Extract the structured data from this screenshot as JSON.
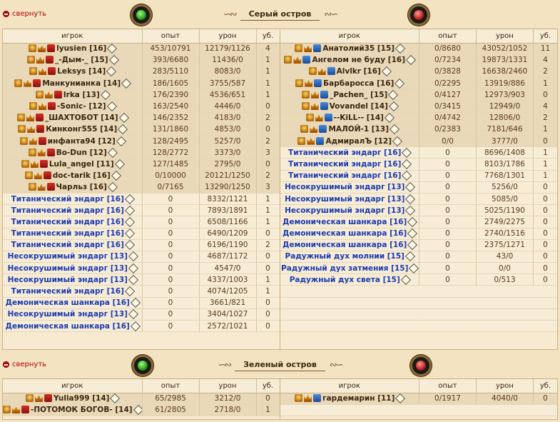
{
  "sections": [
    {
      "collapse_label": "свернуть",
      "title": "Серый остров",
      "columns": [
        "игрок",
        "опыт",
        "урон",
        "уб."
      ],
      "left": [
        {
          "name": "lyusien [16]",
          "exp": "453/10791",
          "dmg": "12179/1126",
          "kills": "4"
        },
        {
          "name": "_-Дым-_ [15]",
          "exp": "393/6680",
          "dmg": "11436/0",
          "kills": "1"
        },
        {
          "name": "Leksys [14]",
          "exp": "283/5110",
          "dmg": "8083/0",
          "kills": "1"
        },
        {
          "name": "Манкунианка [14]",
          "exp": "186/1605",
          "dmg": "3755/587",
          "kills": "1"
        },
        {
          "name": "Irka [13]",
          "exp": "176/2390",
          "dmg": "4536/651",
          "kills": "1"
        },
        {
          "name": "-Sonic- [12]",
          "exp": "163/2540",
          "dmg": "4446/0",
          "kills": "0"
        },
        {
          "name": "_ШАХТОБОТ [14]",
          "exp": "146/2352",
          "dmg": "4183/0",
          "kills": "2"
        },
        {
          "name": "Кинконг555 [14]",
          "exp": "131/1860",
          "dmg": "4853/0",
          "kills": "0"
        },
        {
          "name": "инфанта94 [12]",
          "exp": "128/2495",
          "dmg": "5257/0",
          "kills": "2"
        },
        {
          "name": "Bo-Dun [12]",
          "exp": "128/2772",
          "dmg": "3373/0",
          "kills": "3"
        },
        {
          "name": "Lula_angel [11]",
          "exp": "127/1485",
          "dmg": "2795/0",
          "kills": "0"
        },
        {
          "name": "doc-tarik [16]",
          "exp": "0/10000",
          "dmg": "20121/1250",
          "kills": "2"
        },
        {
          "name": "Чарльз [16]",
          "exp": "0/7165",
          "dmg": "13290/1250",
          "kills": "3"
        },
        {
          "name": "Титанический эндарг [16]",
          "exp": "0",
          "dmg": "8332/1121",
          "kills": "1"
        },
        {
          "name": "Титанический эндарг [16]",
          "exp": "0",
          "dmg": "7893/1891",
          "kills": "1"
        },
        {
          "name": "Титанический эндарг [16]",
          "exp": "0",
          "dmg": "6508/1166",
          "kills": "1"
        },
        {
          "name": "Титанический эндарг [16]",
          "exp": "0",
          "dmg": "6490/1209",
          "kills": "0"
        },
        {
          "name": "Титанический эндарг [16]",
          "exp": "0",
          "dmg": "6196/1190",
          "kills": "2"
        },
        {
          "name": "Несокрушимый эндарг [13]",
          "exp": "0",
          "dmg": "4687/1172",
          "kills": "0"
        },
        {
          "name": "Несокрушимый эндарг [13]",
          "exp": "0",
          "dmg": "4547/0",
          "kills": "0"
        },
        {
          "name": "Несокрушимый эндарг [13]",
          "exp": "0",
          "dmg": "4337/1003",
          "kills": "1"
        },
        {
          "name": "Титанический эндарг [16]",
          "exp": "0",
          "dmg": "4074/1205",
          "kills": "1"
        },
        {
          "name": "Демоническая шанкара [16]",
          "exp": "0",
          "dmg": "3661/821",
          "kills": "0"
        },
        {
          "name": "Несокрушимый эндарг [13]",
          "exp": "0",
          "dmg": "3404/1027",
          "kills": "0"
        },
        {
          "name": "Демоническая шанкара [16]",
          "exp": "0",
          "dmg": "2572/1021",
          "kills": "0"
        }
      ],
      "right": [
        {
          "name": "Анатолий35 [15]",
          "exp": "0/8680",
          "dmg": "43052/1052",
          "kills": "11"
        },
        {
          "name": "Ангелом не буду [16]",
          "exp": "0/7234",
          "dmg": "19873/1331",
          "kills": "4"
        },
        {
          "name": "Alvlkr [16]",
          "exp": "0/3828",
          "dmg": "16638/2460",
          "kills": "2"
        },
        {
          "name": "Барбаросса [16]",
          "exp": "0/2295",
          "dmg": "13919/886",
          "kills": "1"
        },
        {
          "name": "_Pachen_ [15]",
          "exp": "0/4127",
          "dmg": "12973/903",
          "kills": "0"
        },
        {
          "name": "Vovandel [14]",
          "exp": "0/3415",
          "dmg": "12949/0",
          "kills": "4"
        },
        {
          "name": "--KiLL-- [14]",
          "exp": "0/4742",
          "dmg": "12806/0",
          "kills": "2"
        },
        {
          "name": "МАЛОЙ-1 [13]",
          "exp": "0/2383",
          "dmg": "7181/646",
          "kills": "1"
        },
        {
          "name": "АдмиралЪ [12]",
          "exp": "0/0",
          "dmg": "3777/0",
          "kills": "0"
        },
        {
          "name": "Титанический эндарг [16]",
          "exp": "0",
          "dmg": "8696/1408",
          "kills": "1"
        },
        {
          "name": "Титанический эндарг [16]",
          "exp": "0",
          "dmg": "8103/1786",
          "kills": "1"
        },
        {
          "name": "Титанический эндарг [16]",
          "exp": "0",
          "dmg": "7768/1301",
          "kills": "1"
        },
        {
          "name": "Несокрушимый эндарг [13]",
          "exp": "0",
          "dmg": "5256/0",
          "kills": "0"
        },
        {
          "name": "Несокрушимый эндарг [13]",
          "exp": "0",
          "dmg": "5085/0",
          "kills": "0"
        },
        {
          "name": "Несокрушимый эндарг [13]",
          "exp": "0",
          "dmg": "5025/1190",
          "kills": "0"
        },
        {
          "name": "Демоническая шанкара [16]",
          "exp": "0",
          "dmg": "2749/2275",
          "kills": "0"
        },
        {
          "name": "Демоническая шанкара [16]",
          "exp": "0",
          "dmg": "2740/1516",
          "kills": "0"
        },
        {
          "name": "Демоническая шанкара [16]",
          "exp": "0",
          "dmg": "2375/1271",
          "kills": "0"
        },
        {
          "name": "Радужный дух молнии [15]",
          "exp": "0",
          "dmg": "43/0",
          "kills": "0"
        },
        {
          "name": "Радужный дух затмения [15]",
          "exp": "0",
          "dmg": "0/0",
          "kills": "0"
        },
        {
          "name": "Радужный дух света [15]",
          "exp": "0",
          "dmg": "0/513",
          "kills": "0"
        }
      ]
    },
    {
      "collapse_label": "свернуть",
      "title": "Зеленый остров",
      "columns": [
        "игрок",
        "опыт",
        "урон",
        "уб."
      ],
      "left": [
        {
          "name": "Yulia999 [14]",
          "exp": "65/2985",
          "dmg": "3212/0",
          "kills": "0"
        },
        {
          "name": "-ПОТОМОК БОГОВ- [14]",
          "exp": "61/2805",
          "dmg": "2718/0",
          "kills": "1"
        }
      ],
      "right": [
        {
          "name": "гардемарин [11]",
          "exp": "0/1917",
          "dmg": "4040/0",
          "kills": "0"
        }
      ]
    }
  ],
  "colors": {
    "background": "#f3e3c0",
    "player_row": "#ead9b8",
    "mob_row": "#f7ecd6",
    "player_name": "#3a2510",
    "mob_name": "#1a3ab0",
    "collapse_link": "#b00000"
  },
  "icons": {
    "team_left_emblem": "green-orb-icon",
    "team_right_emblem": "red-orb-icon",
    "player_badges": [
      "alignment-icon",
      "crown-icon",
      "clan-icon"
    ],
    "info": "info-diamond-icon"
  }
}
